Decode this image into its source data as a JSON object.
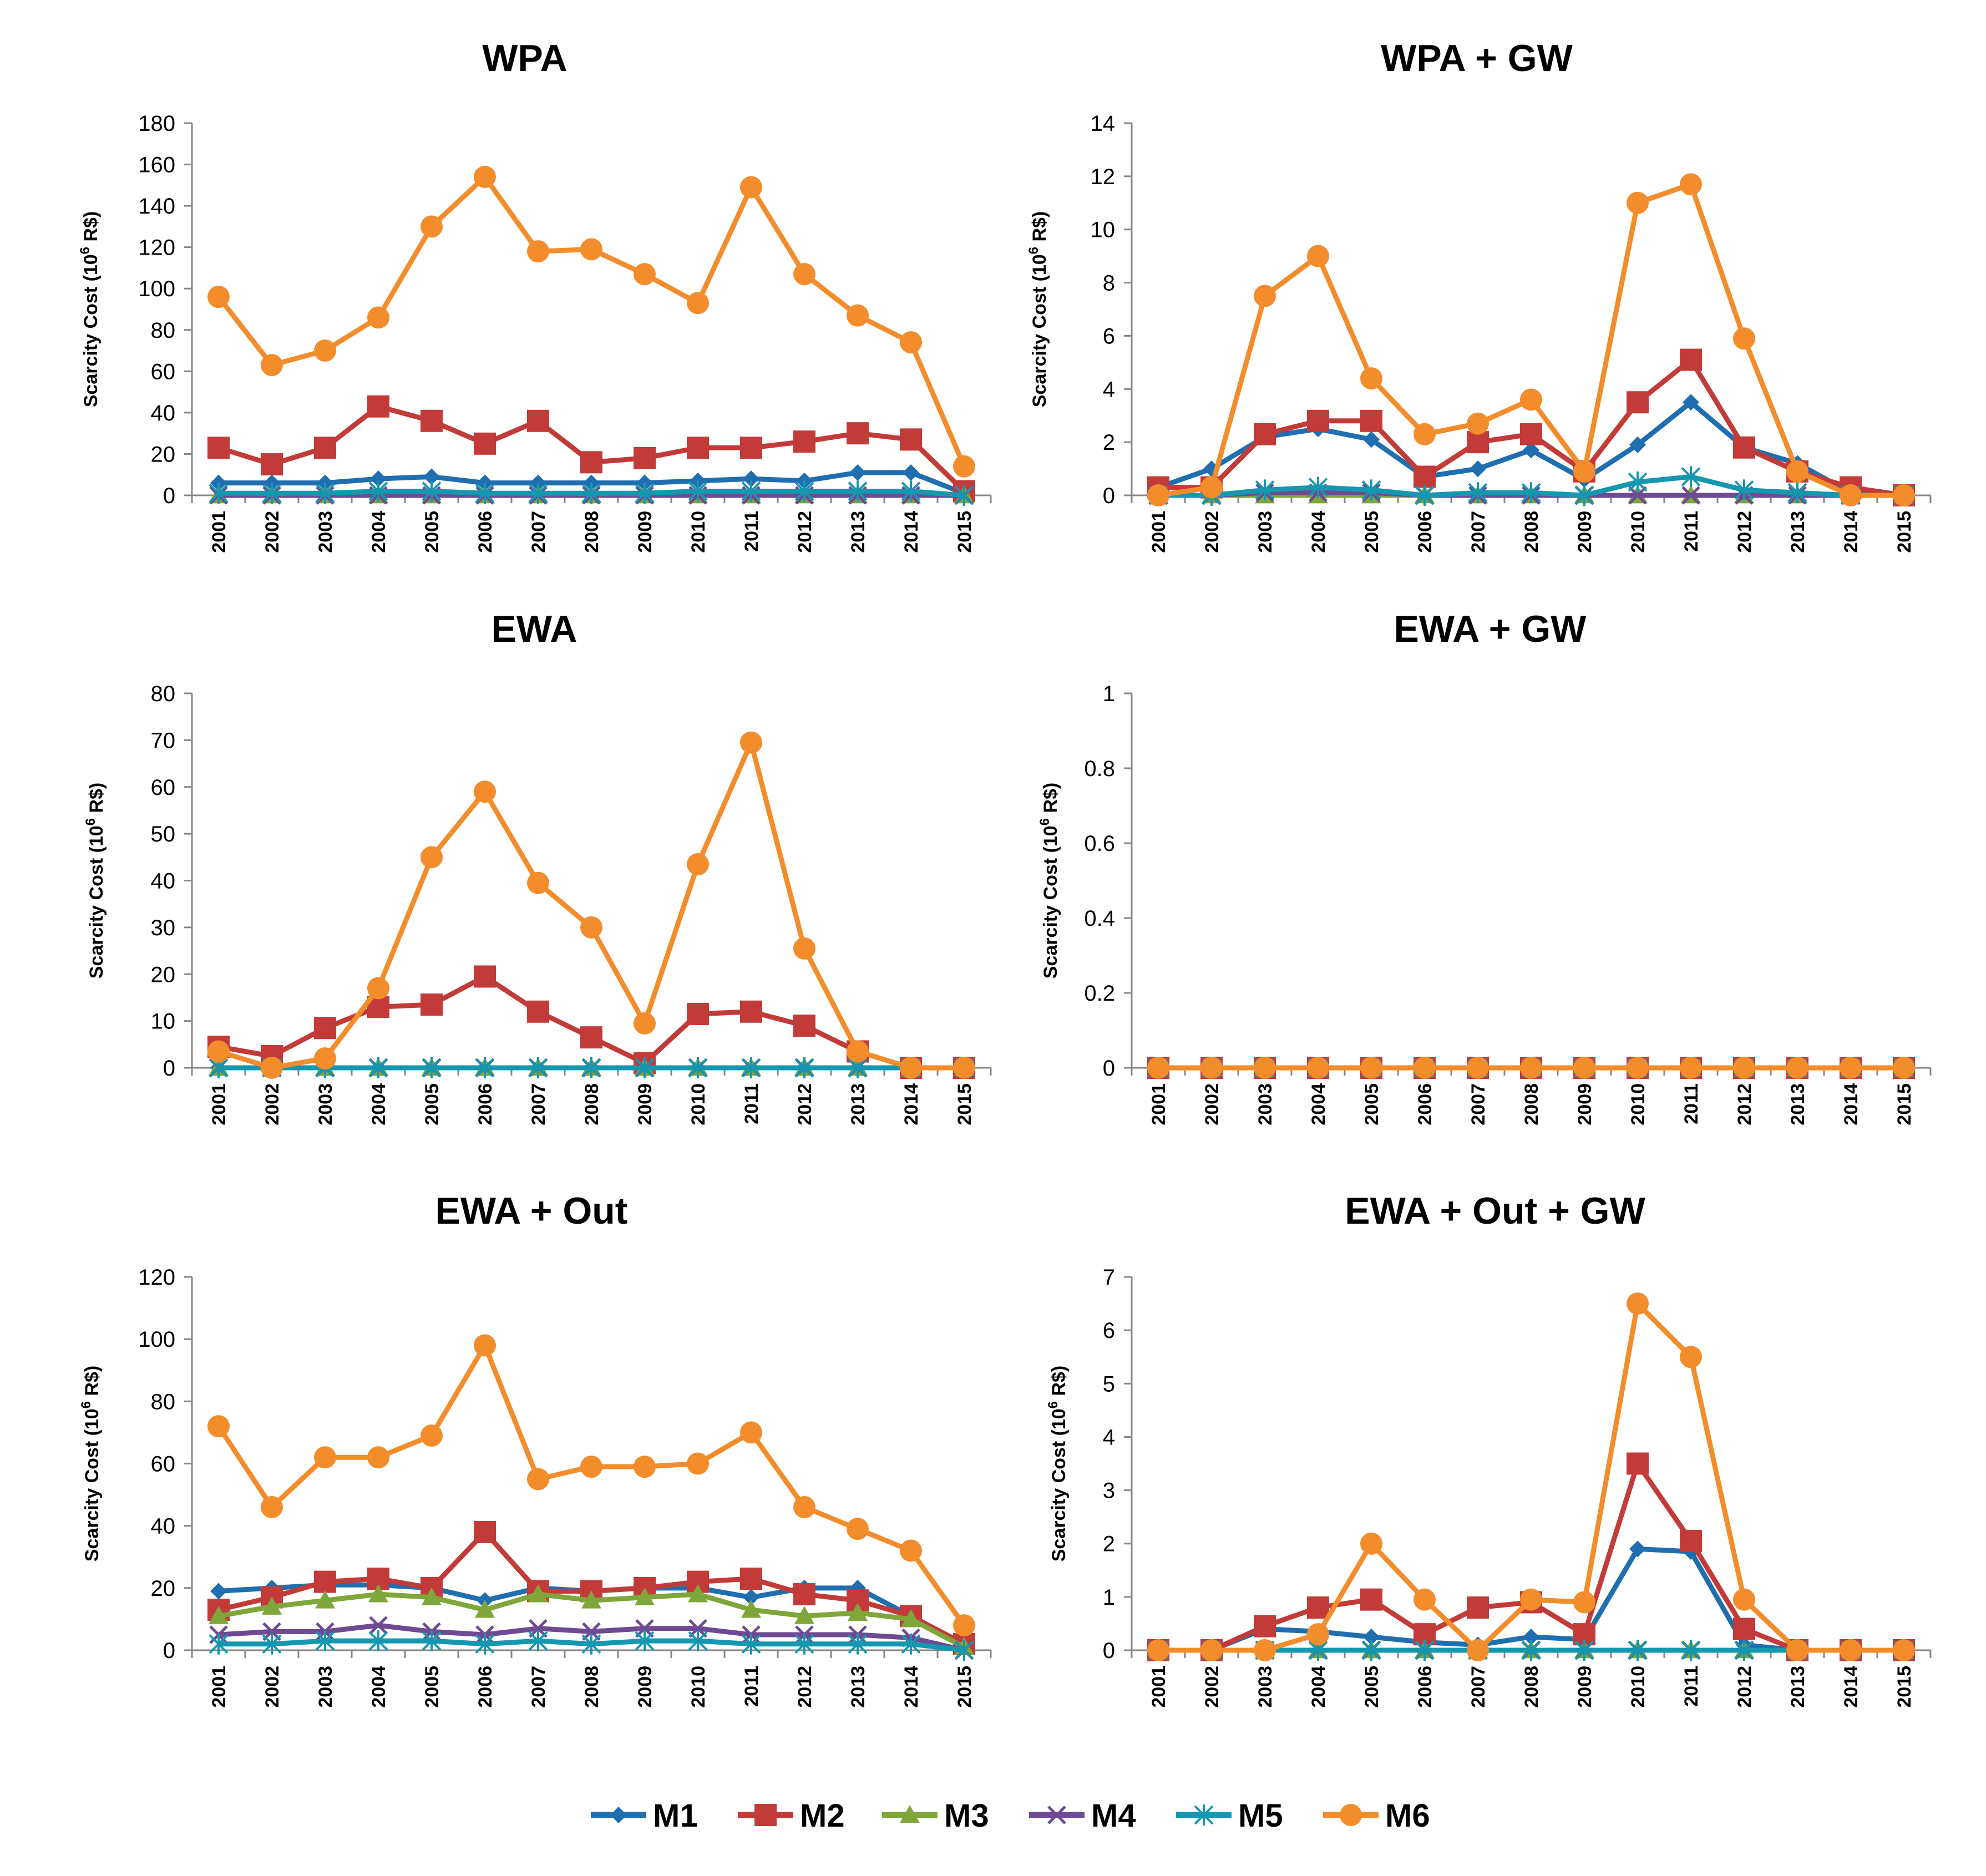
{
  "legend": [
    "M1",
    "M2",
    "M3",
    "M4",
    "M5",
    "M6"
  ],
  "series_colors": {
    "M1": "#1F6EB0",
    "M2": "#C23B39",
    "M3": "#7FA63A",
    "M4": "#6E4A93",
    "M5": "#1597B0",
    "M6": "#F38C2B"
  },
  "series_markers": {
    "M1": "diamond",
    "M2": "square",
    "M3": "triangle",
    "M4": "x",
    "M5": "star",
    "M6": "circle"
  },
  "chart_data": [
    {
      "type": "line",
      "title": "WPA",
      "ylabel_main": "Scarcity Cost (10",
      "ylabel_sup": "6",
      "ylabel_tail": " R$)",
      "ylim": [
        0,
        180
      ],
      "yticks": [
        "0",
        "20",
        "40",
        "60",
        "80",
        "100",
        "120",
        "140",
        "160",
        "180"
      ],
      "ytick_values": [
        0,
        20,
        40,
        60,
        80,
        100,
        120,
        140,
        160,
        180
      ],
      "categories": [
        "2001",
        "2002",
        "2003",
        "2004",
        "2005",
        "2006",
        "2007",
        "2008",
        "2009",
        "2010",
        "2011",
        "2012",
        "2013",
        "2014",
        "2015"
      ],
      "series": [
        {
          "name": "M1",
          "values": [
            6,
            6,
            6,
            8,
            9,
            6,
            6,
            6,
            6,
            7,
            8,
            7,
            11,
            11,
            1
          ]
        },
        {
          "name": "M2",
          "values": [
            23,
            15,
            23,
            43,
            36,
            25,
            36,
            16,
            18,
            23,
            23,
            26,
            30,
            27,
            2
          ]
        },
        {
          "name": "M3",
          "values": [
            0,
            0,
            0,
            0,
            0,
            0,
            0,
            0,
            0,
            0,
            0,
            0,
            0,
            0,
            0
          ]
        },
        {
          "name": "M4",
          "values": [
            0,
            0,
            0,
            0,
            0,
            0,
            0,
            0,
            0,
            0,
            0,
            0,
            0,
            0,
            0
          ]
        },
        {
          "name": "M5",
          "values": [
            1,
            1,
            1,
            2,
            2,
            1,
            1,
            1,
            1,
            2,
            2,
            2,
            2,
            2,
            0
          ]
        },
        {
          "name": "M6",
          "values": [
            96,
            63,
            70,
            86,
            130,
            154,
            118,
            119,
            107,
            93,
            149,
            107,
            87,
            74,
            14
          ]
        }
      ]
    },
    {
      "type": "line",
      "title": "WPA + GW",
      "ylabel_main": "Scarcity Cost (10",
      "ylabel_sup": "6",
      "ylabel_tail": " R$)",
      "ylim": [
        0,
        14
      ],
      "yticks": [
        "0",
        "2",
        "4",
        "6",
        "8",
        "10",
        "12",
        "14"
      ],
      "ytick_values": [
        0,
        2,
        4,
        6,
        8,
        10,
        12,
        14
      ],
      "categories": [
        "2001",
        "2002",
        "2003",
        "2004",
        "2005",
        "2006",
        "2007",
        "2008",
        "2009",
        "2010",
        "2011",
        "2012",
        "2013",
        "2014",
        "2015"
      ],
      "series": [
        {
          "name": "M1",
          "values": [
            0.3,
            1.0,
            2.2,
            2.5,
            2.1,
            0.7,
            1.0,
            1.7,
            0.6,
            1.9,
            3.5,
            1.8,
            1.2,
            0.1,
            0
          ]
        },
        {
          "name": "M2",
          "values": [
            0.3,
            0.3,
            2.3,
            2.8,
            2.8,
            0.7,
            2.0,
            2.3,
            0.9,
            3.5,
            5.1,
            1.8,
            0.9,
            0.3,
            0
          ]
        },
        {
          "name": "M3",
          "values": [
            0,
            0,
            0,
            0,
            0,
            0,
            0,
            0,
            0,
            0,
            0,
            0,
            0,
            0,
            0
          ]
        },
        {
          "name": "M4",
          "values": [
            0,
            0,
            0.1,
            0.1,
            0.1,
            0,
            0,
            0,
            0,
            0,
            0,
            0,
            0,
            0,
            0
          ]
        },
        {
          "name": "M5",
          "values": [
            0,
            0,
            0.2,
            0.3,
            0.2,
            0,
            0.1,
            0.1,
            0,
            0.5,
            0.7,
            0.2,
            0.1,
            0,
            0
          ]
        },
        {
          "name": "M6",
          "values": [
            0,
            0.3,
            7.5,
            9.0,
            4.4,
            2.3,
            2.7,
            3.6,
            0.9,
            11.0,
            11.7,
            5.9,
            0.9,
            0,
            0
          ]
        }
      ]
    },
    {
      "type": "line",
      "title": "EWA",
      "ylabel_main": "Scarcity Cost (10",
      "ylabel_sup": "6",
      "ylabel_tail": " R$)",
      "ylim": [
        0,
        80
      ],
      "yticks": [
        "0",
        "10",
        "20",
        "30",
        "40",
        "50",
        "60",
        "70",
        "80"
      ],
      "ytick_values": [
        0,
        10,
        20,
        30,
        40,
        50,
        60,
        70,
        80
      ],
      "categories": [
        "2001",
        "2002",
        "2003",
        "2004",
        "2005",
        "2006",
        "2007",
        "2008",
        "2009",
        "2010",
        "2011",
        "2012",
        "2013",
        "2014",
        "2015"
      ],
      "series": [
        {
          "name": "M1",
          "values": [
            0,
            0,
            0,
            0,
            0,
            0,
            0,
            0,
            0,
            0,
            0,
            0,
            0,
            0,
            0
          ]
        },
        {
          "name": "M2",
          "values": [
            4.5,
            2.5,
            8.5,
            13,
            13.5,
            19.5,
            12,
            6.5,
            1,
            11.5,
            12,
            9,
            3.5,
            0,
            0
          ]
        },
        {
          "name": "M3",
          "values": [
            0,
            0,
            0,
            0,
            0,
            0,
            0,
            0,
            0,
            0,
            0,
            0,
            0,
            0,
            0
          ]
        },
        {
          "name": "M4",
          "values": [
            0,
            0,
            0,
            0,
            0,
            0,
            0,
            0,
            0,
            0,
            0,
            0,
            0,
            0,
            0
          ]
        },
        {
          "name": "M5",
          "values": [
            0,
            0,
            0,
            0,
            0,
            0,
            0,
            0,
            0,
            0,
            0,
            0,
            0,
            0,
            0
          ]
        },
        {
          "name": "M6",
          "values": [
            3.5,
            0,
            2,
            17,
            45,
            59,
            39.5,
            30,
            9.5,
            43.5,
            69.5,
            25.5,
            3.5,
            0,
            0
          ]
        }
      ]
    },
    {
      "type": "line",
      "title": "EWA + GW",
      "ylabel_main": "Scarcity Cost (10",
      "ylabel_sup": "6",
      "ylabel_tail": " R$)",
      "ylim": [
        0,
        1
      ],
      "yticks": [
        "0",
        "0.2",
        "0.4",
        "0.6",
        "0.8",
        "1"
      ],
      "ytick_values": [
        0,
        0.2,
        0.4,
        0.6,
        0.8,
        1
      ],
      "categories": [
        "2001",
        "2002",
        "2003",
        "2004",
        "2005",
        "2006",
        "2007",
        "2008",
        "2009",
        "2010",
        "2011",
        "2012",
        "2013",
        "2014",
        "2015"
      ],
      "series": [
        {
          "name": "M1",
          "values": [
            0,
            0,
            0,
            0,
            0,
            0,
            0,
            0,
            0,
            0,
            0,
            0,
            0,
            0,
            0
          ]
        },
        {
          "name": "M2",
          "values": [
            0,
            0,
            0,
            0,
            0,
            0,
            0,
            0,
            0,
            0,
            0,
            0,
            0,
            0,
            0
          ]
        },
        {
          "name": "M3",
          "values": [
            0,
            0,
            0,
            0,
            0,
            0,
            0,
            0,
            0,
            0,
            0,
            0,
            0,
            0,
            0
          ]
        },
        {
          "name": "M4",
          "values": [
            0,
            0,
            0,
            0,
            0,
            0,
            0,
            0,
            0,
            0,
            0,
            0,
            0,
            0,
            0
          ]
        },
        {
          "name": "M5",
          "values": [
            0,
            0,
            0,
            0,
            0,
            0,
            0,
            0,
            0,
            0,
            0,
            0,
            0,
            0,
            0
          ]
        },
        {
          "name": "M6",
          "values": [
            0,
            0,
            0,
            0,
            0,
            0,
            0,
            0,
            0,
            0,
            0,
            0,
            0,
            0,
            0
          ]
        }
      ]
    },
    {
      "type": "line",
      "title": "EWA + Out",
      "ylabel_main": "Scarcity Cost (10",
      "ylabel_sup": "6",
      "ylabel_tail": " R$)",
      "ylim": [
        0,
        120
      ],
      "yticks": [
        "0",
        "20",
        "40",
        "60",
        "80",
        "100",
        "120"
      ],
      "ytick_values": [
        0,
        20,
        40,
        60,
        80,
        100,
        120
      ],
      "categories": [
        "2001",
        "2002",
        "2003",
        "2004",
        "2005",
        "2006",
        "2007",
        "2008",
        "2009",
        "2010",
        "2011",
        "2012",
        "2013",
        "2014",
        "2015"
      ],
      "series": [
        {
          "name": "M1",
          "values": [
            19,
            20,
            21,
            21,
            20,
            16,
            20,
            19,
            20,
            20,
            17,
            20,
            20,
            11,
            1
          ]
        },
        {
          "name": "M2",
          "values": [
            13,
            17,
            22,
            23,
            20,
            38,
            19,
            19,
            20,
            22,
            23,
            18,
            16,
            11,
            2
          ]
        },
        {
          "name": "M3",
          "values": [
            11,
            14,
            16,
            18,
            17,
            13,
            18,
            16,
            17,
            18,
            13,
            11,
            12,
            10,
            1
          ]
        },
        {
          "name": "M4",
          "values": [
            5,
            6,
            6,
            8,
            6,
            5,
            7,
            6,
            7,
            7,
            5,
            5,
            5,
            4,
            0
          ]
        },
        {
          "name": "M5",
          "values": [
            2,
            2,
            3,
            3,
            3,
            2,
            3,
            2,
            3,
            3,
            2,
            2,
            2,
            2,
            0
          ]
        },
        {
          "name": "M6",
          "values": [
            72,
            46,
            62,
            62,
            69,
            98,
            55,
            59,
            59,
            60,
            70,
            46,
            39,
            32,
            8
          ]
        }
      ]
    },
    {
      "type": "line",
      "title": "EWA + Out + GW",
      "ylabel_main": "Scarcity Cost (10",
      "ylabel_sup": "6",
      "ylabel_tail": " R$)",
      "ylim": [
        0,
        7
      ],
      "yticks": [
        "0",
        "1",
        "2",
        "3",
        "4",
        "5",
        "6",
        "7"
      ],
      "ytick_values": [
        0,
        1,
        2,
        3,
        4,
        5,
        6,
        7
      ],
      "categories": [
        "2001",
        "2002",
        "2003",
        "2004",
        "2005",
        "2006",
        "2007",
        "2008",
        "2009",
        "2010",
        "2011",
        "2012",
        "2013",
        "2014",
        "2015"
      ],
      "series": [
        {
          "name": "M1",
          "values": [
            0,
            0,
            0.4,
            0.35,
            0.25,
            0.15,
            0.1,
            0.25,
            0.2,
            1.9,
            1.85,
            0.1,
            0,
            0,
            0
          ]
        },
        {
          "name": "M2",
          "values": [
            0,
            0,
            0.45,
            0.8,
            0.95,
            0.3,
            0.8,
            0.9,
            0.3,
            3.5,
            2.05,
            0.4,
            0,
            0,
            0
          ]
        },
        {
          "name": "M3",
          "values": [
            0,
            0,
            0,
            0,
            0,
            0,
            0,
            0,
            0,
            0,
            0,
            0,
            0,
            0,
            0
          ]
        },
        {
          "name": "M4",
          "values": [
            0,
            0,
            0,
            0,
            0,
            0,
            0,
            0,
            0,
            0,
            0,
            0,
            0,
            0,
            0
          ]
        },
        {
          "name": "M5",
          "values": [
            0,
            0,
            0,
            0,
            0,
            0,
            0,
            0,
            0,
            0,
            0,
            0,
            0,
            0,
            0
          ]
        },
        {
          "name": "M6",
          "values": [
            0,
            0,
            0,
            0.3,
            2.0,
            0.95,
            0,
            0.95,
            0.9,
            6.5,
            5.5,
            0.95,
            0,
            0,
            0
          ]
        }
      ]
    }
  ]
}
